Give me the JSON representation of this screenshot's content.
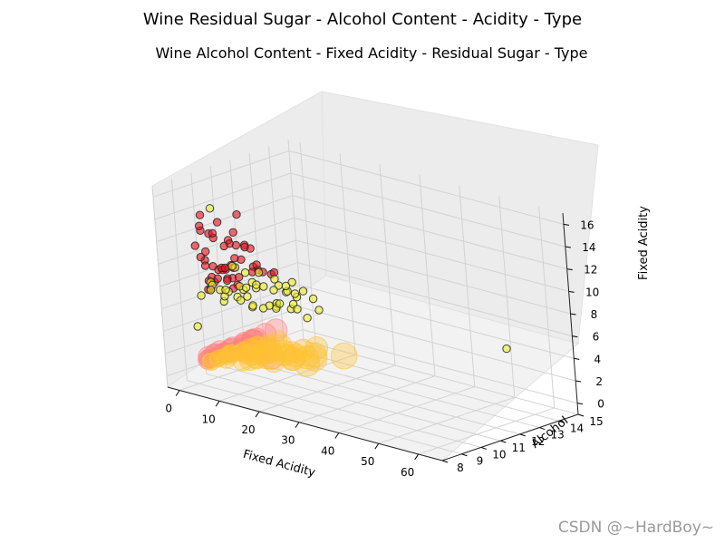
{
  "chart_data": {
    "type": "scatter",
    "suptitle": "Wine Residual Sugar - Alcohol Content - Acidity - Type",
    "title": "Wine Alcohol Content - Fixed Acidity - Residual Sugar - Type",
    "xlabel": "Fixed Acidity",
    "ylabel": "Alcohol",
    "zlabel": "Fixed Acidity",
    "x_ticks": [
      "0",
      "10",
      "20",
      "30",
      "40",
      "50",
      "60"
    ],
    "y_ticks": [
      "8",
      "9",
      "10",
      "11",
      "12",
      "13",
      "14",
      "15"
    ],
    "z_ticks": [
      "0",
      "2",
      "4",
      "6",
      "8",
      "10",
      "12",
      "14",
      "16"
    ],
    "xlim": [
      -3,
      66
    ],
    "ylim": [
      8,
      15
    ],
    "zlim": [
      -1,
      17
    ],
    "grid": true,
    "series": [
      {
        "color": "#e8101a",
        "points": [
          [
            2.2,
            9.4,
            7.4
          ],
          [
            1.9,
            9.8,
            7.8
          ],
          [
            2.6,
            10.5,
            11.2
          ],
          [
            2.0,
            9.5,
            8.1
          ],
          [
            3.5,
            10.1,
            8.9
          ],
          [
            1.8,
            9.6,
            7.3
          ],
          [
            2.5,
            10.9,
            10.5
          ],
          [
            6.1,
            9.9,
            8.5
          ],
          [
            1.6,
            11.0,
            6.8
          ],
          [
            2.3,
            9.2,
            12.8
          ],
          [
            4.4,
            10.2,
            9.3
          ],
          [
            2.8,
            12.5,
            7.0
          ],
          [
            1.7,
            9.0,
            11.5
          ],
          [
            2.1,
            10.0,
            8.8
          ],
          [
            3.0,
            11.5,
            9.9
          ],
          [
            2.4,
            9.3,
            10.1
          ],
          [
            1.5,
            10.8,
            6.6
          ],
          [
            2.9,
            9.7,
            11.9
          ],
          [
            5.2,
            10.4,
            8.2
          ],
          [
            2.0,
            12.0,
            7.6
          ],
          [
            15.5,
            8.5,
            15.9
          ],
          [
            2.6,
            9.1,
            13.3
          ],
          [
            3.4,
            10.6,
            9.6
          ],
          [
            1.9,
            11.8,
            8.0
          ],
          [
            2.2,
            9.4,
            10.8
          ],
          [
            8.0,
            9.5,
            12.0
          ],
          [
            2.7,
            10.3,
            7.9
          ],
          [
            1.8,
            9.8,
            9.2
          ],
          [
            3.1,
            11.2,
            10.4
          ],
          [
            2.3,
            9.6,
            8.4
          ],
          [
            4.0,
            10.0,
            11.1
          ],
          [
            2.0,
            12.8,
            6.9
          ],
          [
            2.5,
            9.2,
            14.2
          ],
          [
            1.6,
            10.5,
            7.5
          ],
          [
            3.7,
            9.9,
            9.0
          ],
          [
            2.1,
            11.4,
            10.0
          ],
          [
            2.8,
            9.5,
            12.4
          ],
          [
            2.4,
            10.7,
            8.6
          ],
          [
            6.5,
            9.3,
            9.8
          ],
          [
            1.7,
            12.3,
            7.2
          ],
          [
            2.2,
            10.1,
            13.0
          ],
          [
            3.3,
            9.7,
            8.3
          ],
          [
            2.0,
            10.9,
            11.6
          ],
          [
            1.9,
            9.4,
            9.5
          ],
          [
            2.6,
            11.6,
            7.7
          ],
          [
            12.0,
            10.0,
            10.2
          ],
          [
            2.3,
            9.8,
            12.2
          ],
          [
            1.8,
            10.4,
            8.7
          ],
          [
            2.9,
            9.0,
            10.6
          ],
          [
            2.5,
            11.1,
            9.1
          ]
        ]
      },
      {
        "color": "#ecec2a",
        "points": [
          [
            1.2,
            10.6,
            6.4
          ],
          [
            7.5,
            9.8,
            7.0
          ],
          [
            14.0,
            11.5,
            6.6
          ],
          [
            1.6,
            12.3,
            5.9
          ],
          [
            9.8,
            9.5,
            7.1
          ],
          [
            1.1,
            10.2,
            6.8
          ],
          [
            5.4,
            11.0,
            7.4
          ],
          [
            12.2,
            10.8,
            6.0
          ],
          [
            2.0,
            12.8,
            6.3
          ],
          [
            16.5,
            9.6,
            7.2
          ],
          [
            1.3,
            9.2,
            6.9
          ],
          [
            8.1,
            10.4,
            5.8
          ],
          [
            3.2,
            11.8,
            7.6
          ],
          [
            13.4,
            9.9,
            6.5
          ],
          [
            1.5,
            11.3,
            6.2
          ],
          [
            10.5,
            12.0,
            7.3
          ],
          [
            6.0,
            9.4,
            6.7
          ],
          [
            1.9,
            13.0,
            5.6
          ],
          [
            18.0,
            10.2,
            8.2
          ],
          [
            4.4,
            10.9,
            6.1
          ],
          [
            11.2,
            11.6,
            6.8
          ],
          [
            1.4,
            9.7,
            7.8
          ],
          [
            20.0,
            10.0,
            7.0
          ],
          [
            2.6,
            12.6,
            5.5
          ],
          [
            7.8,
            9.1,
            7.5
          ],
          [
            15.0,
            11.1,
            6.3
          ],
          [
            1.0,
            10.5,
            6.6
          ],
          [
            9.0,
            12.4,
            5.9
          ],
          [
            3.8,
            9.3,
            8.0
          ],
          [
            12.8,
            10.7,
            6.4
          ],
          [
            1.7,
            11.9,
            6.0
          ],
          [
            6.7,
            10.1,
            7.7
          ],
          [
            17.2,
            9.8,
            6.9
          ],
          [
            1.2,
            13.5,
            5.2
          ],
          [
            4.9,
            10.3,
            9.1
          ],
          [
            22.0,
            11.0,
            6.5
          ],
          [
            2.3,
            9.5,
            7.3
          ],
          [
            10.0,
            11.4,
            5.7
          ],
          [
            14.6,
            12.2,
            6.1
          ],
          [
            1.1,
            10.0,
            14.2
          ],
          [
            65.8,
            11.7,
            6.8
          ],
          [
            0.8,
            9.0,
            4.2
          ],
          [
            26.0,
            9.6,
            7.0
          ],
          [
            1.6,
            10.8,
            8.6
          ],
          [
            8.6,
            12.9,
            5.8
          ],
          [
            19.0,
            10.5,
            6.6
          ],
          [
            2.8,
            11.2,
            7.9
          ],
          [
            11.8,
            9.7,
            6.7
          ],
          [
            1.3,
            12.0,
            6.2
          ],
          [
            5.8,
            10.6,
            7.2
          ]
        ]
      },
      {
        "color": "#ff8080",
        "points": [
          [
            2.5,
            9.4,
            1.6
          ],
          [
            12.0,
            10.1,
            2.4
          ],
          [
            2.0,
            9.8,
            1.4
          ],
          [
            1.8,
            10.5,
            1.2
          ],
          [
            3.5,
            9.5,
            1.9
          ],
          [
            2.2,
            11.0,
            1.7
          ],
          [
            6.0,
            9.6,
            2.2
          ],
          [
            2.4,
            9.9,
            1.5
          ],
          [
            1.6,
            10.2,
            1.1
          ],
          [
            15.5,
            9.7,
            2.5
          ],
          [
            2.8,
            11.5,
            1.8
          ],
          [
            4.4,
            10.0,
            2.0
          ],
          [
            1.9,
            9.2,
            1.3
          ],
          [
            2.6,
            12.0,
            1.9
          ],
          [
            8.0,
            9.9,
            2.3
          ],
          [
            2.1,
            9.5,
            1.6
          ],
          [
            3.0,
            10.8,
            1.5
          ],
          [
            1.7,
            9.3,
            1.2
          ],
          [
            5.2,
            10.4,
            2.1
          ],
          [
            2.3,
            11.4,
            1.7
          ],
          [
            2.7,
            9.0,
            1.4
          ],
          [
            3.8,
            10.7,
            1.8
          ],
          [
            10.0,
            9.8,
            2.6
          ],
          [
            2.0,
            10.3,
            1.5
          ],
          [
            2.9,
            12.5,
            2.0
          ],
          [
            1.5,
            9.6,
            1.2
          ],
          [
            6.8,
            10.6,
            2.4
          ],
          [
            2.4,
            9.1,
            1.6
          ],
          [
            3.3,
            11.2,
            1.9
          ],
          [
            2.2,
            10.0,
            1.4
          ]
        ]
      },
      {
        "color": "#ffc233",
        "points": [
          [
            1.2,
            10.5,
            1.0
          ],
          [
            7.5,
            10.8,
            1.5
          ],
          [
            14.0,
            10.6,
            2.0
          ],
          [
            1.6,
            11.0,
            0.9
          ],
          [
            9.8,
            10.9,
            1.6
          ],
          [
            1.1,
            9.8,
            0.8
          ],
          [
            5.4,
            10.4,
            1.3
          ],
          [
            12.2,
            10.1,
            1.8
          ],
          [
            2.0,
            11.6,
            1.1
          ],
          [
            16.5,
            10.7,
            2.1
          ],
          [
            1.3,
            9.4,
            0.9
          ],
          [
            8.1,
            11.2,
            1.4
          ],
          [
            3.2,
            10.0,
            1.2
          ],
          [
            13.4,
            10.9,
            1.7
          ],
          [
            1.5,
            11.4,
            1.0
          ],
          [
            10.5,
            9.6,
            1.8
          ],
          [
            6.0,
            11.6,
            1.3
          ],
          [
            1.9,
            10.2,
            1.1
          ],
          [
            18.0,
            10.3,
            2.2
          ],
          [
            4.4,
            11.8,
            1.2
          ],
          [
            11.2,
            9.8,
            1.9
          ],
          [
            1.4,
            10.6,
            0.9
          ],
          [
            20.0,
            11.0,
            2.3
          ],
          [
            2.6,
            9.2,
            1.1
          ],
          [
            7.8,
            10.2,
            1.6
          ],
          [
            15.0,
            9.9,
            1.9
          ],
          [
            1.0,
            12.4,
            0.8
          ],
          [
            9.0,
            10.5,
            1.5
          ],
          [
            3.8,
            11.1,
            1.3
          ],
          [
            12.8,
            11.3,
            1.7
          ],
          [
            1.7,
            9.7,
            1.0
          ],
          [
            6.7,
            12.0,
            1.4
          ],
          [
            17.2,
            10.4,
            2.0
          ],
          [
            1.2,
            11.9,
            0.9
          ],
          [
            4.9,
            9.5,
            1.4
          ],
          [
            22.0,
            10.6,
            2.4
          ],
          [
            2.3,
            10.9,
            1.1
          ],
          [
            10.0,
            10.0,
            1.7
          ],
          [
            14.6,
            11.5,
            1.9
          ],
          [
            26.0,
            11.3,
            2.6
          ],
          [
            1.6,
            10.3,
            1.0
          ],
          [
            8.6,
            9.6,
            1.5
          ],
          [
            19.0,
            10.8,
            2.1
          ],
          [
            2.8,
            12.6,
            1.1
          ],
          [
            11.8,
            11.1,
            1.8
          ],
          [
            1.3,
            10.0,
            0.9
          ],
          [
            5.8,
            11.2,
            1.3
          ],
          [
            23.5,
            9.9,
            2.5
          ],
          [
            16.0,
            11.9,
            2.0
          ],
          [
            3.5,
            10.6,
            1.2
          ]
        ]
      }
    ]
  },
  "watermark": "CSDN @~HardBoy~"
}
